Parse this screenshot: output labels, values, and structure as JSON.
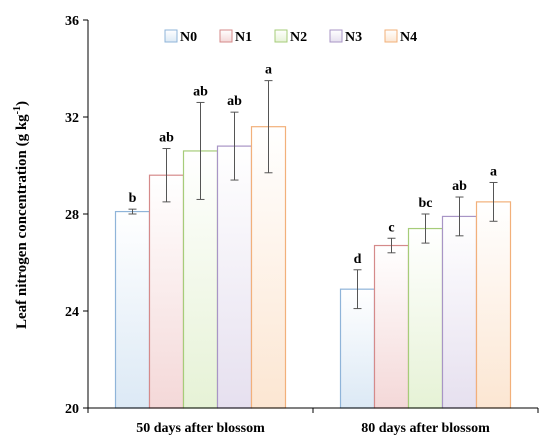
{
  "chart_data": {
    "type": "bar",
    "ylabel_main": "Leaf nitrogen concentration (g kg",
    "ylabel_sup": "-1",
    "ylabel_close": ")",
    "ylim": [
      20,
      36
    ],
    "yticks": [
      20,
      24,
      28,
      32,
      36
    ],
    "categories": [
      "50 days after blossom",
      "80 days after blossom"
    ],
    "legend_position": "top-center",
    "series": [
      {
        "name": "N0",
        "color": "#dce9f5",
        "edge": "#8fb4d9",
        "values": [
          28.1,
          24.9
        ],
        "errors": [
          0.1,
          0.8
        ],
        "letters": [
          "b",
          "d"
        ]
      },
      {
        "name": "N1",
        "color": "#f4d8d8",
        "edge": "#d58a8a",
        "values": [
          29.6,
          26.7
        ],
        "errors": [
          1.1,
          0.3
        ],
        "letters": [
          "ab",
          "c"
        ]
      },
      {
        "name": "N2",
        "color": "#e6f2d6",
        "edge": "#a6cc79",
        "values": [
          30.6,
          27.4
        ],
        "errors": [
          2.0,
          0.6
        ],
        "letters": [
          "ab",
          "bc"
        ]
      },
      {
        "name": "N3",
        "color": "#e6e0ef",
        "edge": "#a895c6",
        "values": [
          30.8,
          27.9
        ],
        "errors": [
          1.4,
          0.8
        ],
        "letters": [
          "ab",
          "ab"
        ]
      },
      {
        "name": "N4",
        "color": "#fce6d2",
        "edge": "#f2b07a",
        "values": [
          31.6,
          28.5
        ],
        "errors": [
          1.9,
          0.8
        ],
        "letters": [
          "a",
          "a"
        ]
      }
    ]
  }
}
